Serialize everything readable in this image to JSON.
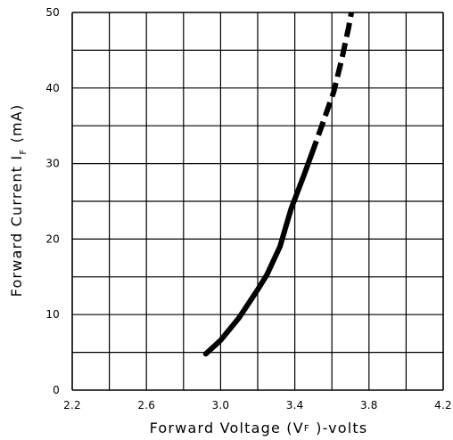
{
  "chart_data": {
    "type": "line",
    "title": "",
    "xlabel": {
      "prefix": "Forward Voltage (V",
      "subscript": "F",
      "suffix": " )-volts"
    },
    "ylabel": {
      "prefix": "Forward Current I",
      "subscript": "F",
      "suffix": "  (mA)"
    },
    "xlim": [
      2.2,
      4.2
    ],
    "ylim": [
      0,
      50
    ],
    "x_ticks": [
      2.2,
      2.6,
      3.0,
      3.4,
      3.8,
      4.2
    ],
    "x_tick_labels": [
      "2.2",
      "2.6",
      "3.0",
      "3.4",
      "3.8",
      "4.2"
    ],
    "y_ticks": [
      0,
      10,
      20,
      30,
      40,
      50
    ],
    "y_tick_labels": [
      "0",
      "10",
      "20",
      "30",
      "40",
      "50"
    ],
    "grid": true,
    "grid_x_step": 0.2,
    "grid_y_step": 5,
    "line_color": "#000000",
    "grid_color": "#000000",
    "series": [
      {
        "style": "solid",
        "points": [
          [
            2.92,
            4.8
          ],
          [
            3.0,
            6.6
          ],
          [
            3.1,
            9.6
          ],
          [
            3.2,
            13.3
          ],
          [
            3.25,
            15.3
          ],
          [
            3.32,
            19.0
          ],
          [
            3.38,
            24.0
          ],
          [
            3.45,
            28.5
          ],
          [
            3.49,
            31.2
          ]
        ]
      },
      {
        "style": "dashed",
        "points": [
          [
            3.49,
            31.2
          ],
          [
            3.54,
            34.6
          ],
          [
            3.61,
            39.5
          ],
          [
            3.655,
            44.0
          ],
          [
            3.69,
            48.0
          ],
          [
            3.705,
            50.0
          ]
        ]
      }
    ]
  }
}
